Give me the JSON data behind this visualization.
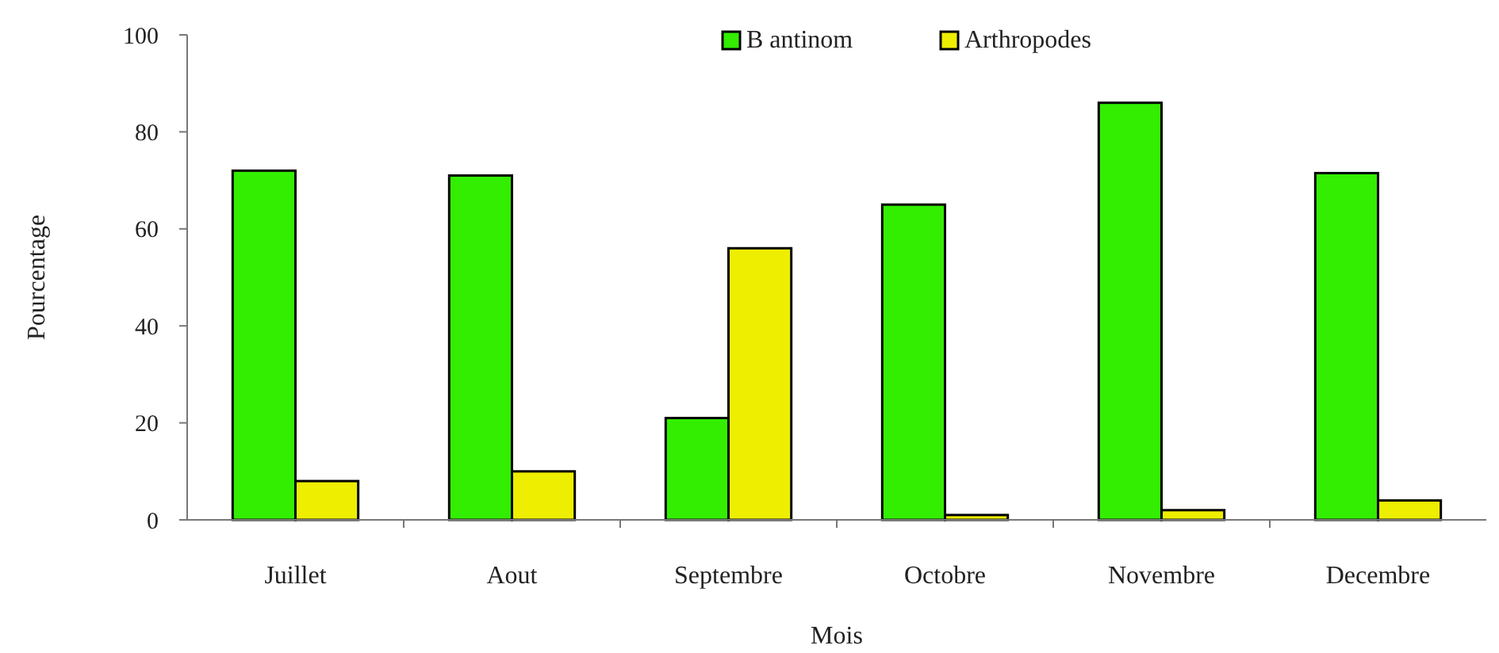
{
  "chart_data": {
    "type": "bar",
    "xlabel": "Mois",
    "ylabel": "Pourcentage",
    "categories": [
      "Juillet",
      "Aout",
      "Septembre",
      "Octobre",
      "Novembre",
      "Decembre"
    ],
    "series": [
      {
        "name": "B antinom",
        "color": "#33ee00",
        "values": [
          72,
          71,
          21,
          65,
          86,
          71.5
        ]
      },
      {
        "name": "Arthropodes",
        "color": "#eeee00",
        "values": [
          8,
          10,
          56,
          1,
          2,
          4
        ]
      }
    ],
    "ylim": [
      0,
      100
    ],
    "yticks": [
      0,
      20,
      40,
      60,
      80,
      100
    ],
    "grid": false,
    "legend": "top"
  }
}
